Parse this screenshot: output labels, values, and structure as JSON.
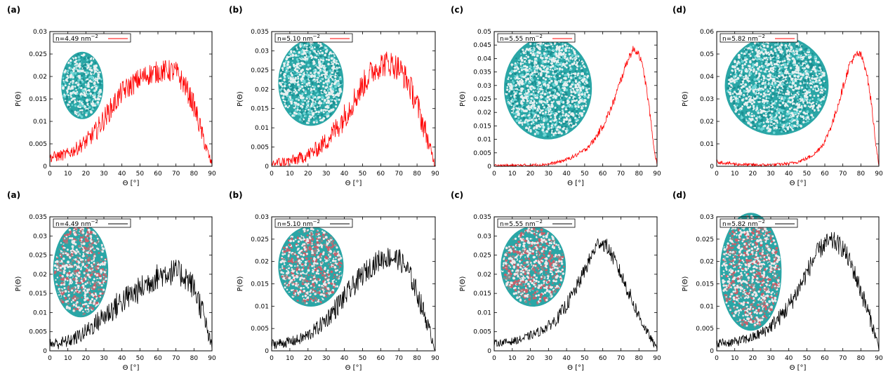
{
  "chart_data": [
    {
      "type": "line",
      "panel": "(a)",
      "legend": "n=4.49 nm",
      "legend_sup": "−2",
      "color": "#ff0000",
      "xlabel": "Θ [°]",
      "ylabel": "P(Θ)",
      "xlim": [
        0,
        90
      ],
      "ylim": [
        0,
        0.03
      ],
      "xticks": [
        0,
        10,
        20,
        30,
        40,
        50,
        60,
        70,
        80,
        90
      ],
      "yticks": [
        0,
        0.005,
        0.01,
        0.015,
        0.02,
        0.025,
        0.03
      ],
      "x": [
        0,
        5,
        10,
        15,
        20,
        25,
        30,
        35,
        40,
        45,
        50,
        55,
        60,
        65,
        70,
        75,
        80,
        85,
        88,
        90
      ],
      "y": [
        0.002,
        0.0023,
        0.0028,
        0.004,
        0.0055,
        0.0075,
        0.0105,
        0.0135,
        0.0165,
        0.018,
        0.0195,
        0.0205,
        0.021,
        0.0213,
        0.021,
        0.018,
        0.0135,
        0.0065,
        0.0025,
        0.0003
      ],
      "noise": 0.0025,
      "inset": {
        "cx": 0.2,
        "cy": 0.4,
        "r": 0.13,
        "rh": 0.25,
        "scheme": "cyan"
      }
    },
    {
      "type": "line",
      "panel": "(b)",
      "legend": "n=5.10 nm",
      "legend_sup": "−2",
      "color": "#ff0000",
      "xlabel": "Θ [°]",
      "ylabel": "P(Θ)",
      "xlim": [
        0,
        90
      ],
      "ylim": [
        0,
        0.035
      ],
      "xticks": [
        0,
        10,
        20,
        30,
        40,
        50,
        60,
        70,
        80,
        90
      ],
      "yticks": [
        0,
        0.005,
        0.01,
        0.015,
        0.02,
        0.025,
        0.03,
        0.035
      ],
      "x": [
        0,
        5,
        10,
        15,
        20,
        25,
        30,
        35,
        40,
        45,
        50,
        55,
        60,
        65,
        70,
        75,
        80,
        85,
        88,
        90
      ],
      "y": [
        0.0008,
        0.001,
        0.0013,
        0.002,
        0.003,
        0.0045,
        0.0065,
        0.0095,
        0.013,
        0.017,
        0.021,
        0.0245,
        0.0265,
        0.0268,
        0.0255,
        0.022,
        0.016,
        0.0085,
        0.003,
        0.0005
      ],
      "noise": 0.0035,
      "inset": {
        "cx": 0.24,
        "cy": 0.38,
        "r": 0.2,
        "rh": 0.32,
        "scheme": "cyan"
      }
    },
    {
      "type": "line",
      "panel": "(c)",
      "legend": "n=5.55 nm",
      "legend_sup": "−2",
      "color": "#ff0000",
      "xlabel": "Θ [°]",
      "ylabel": "P(Θ)",
      "xlim": [
        0,
        90
      ],
      "ylim": [
        0,
        0.05
      ],
      "xticks": [
        0,
        10,
        20,
        30,
        40,
        50,
        60,
        70,
        80,
        90
      ],
      "yticks": [
        0,
        0.005,
        0.01,
        0.015,
        0.02,
        0.025,
        0.03,
        0.035,
        0.04,
        0.045,
        0.05
      ],
      "x": [
        0,
        10,
        20,
        30,
        35,
        40,
        45,
        50,
        55,
        60,
        65,
        70,
        74,
        77,
        80,
        83,
        86,
        88,
        90
      ],
      "y": [
        0.0003,
        0.0003,
        0.0004,
        0.0008,
        0.0015,
        0.0025,
        0.004,
        0.006,
        0.0095,
        0.015,
        0.022,
        0.032,
        0.04,
        0.0435,
        0.042,
        0.034,
        0.02,
        0.008,
        0.0005
      ],
      "noise": 0.0015,
      "inset": {
        "cx": 0.33,
        "cy": 0.42,
        "r": 0.27,
        "rh": 0.38,
        "scheme": "cyan"
      }
    },
    {
      "type": "line",
      "panel": "(d)",
      "legend": "n=5.82 nm",
      "legend_sup": "−2",
      "color": "#ff0000",
      "xlabel": "Θ [°]",
      "ylabel": "P(Θ)",
      "xlim": [
        0,
        90
      ],
      "ylim": [
        0,
        0.06
      ],
      "xticks": [
        0,
        10,
        20,
        30,
        40,
        50,
        60,
        70,
        80,
        90
      ],
      "yticks": [
        0,
        0.01,
        0.02,
        0.03,
        0.04,
        0.05,
        0.06
      ],
      "x": [
        0,
        5,
        10,
        20,
        30,
        40,
        45,
        50,
        55,
        60,
        65,
        70,
        74,
        78,
        80,
        83,
        86,
        88,
        90
      ],
      "y": [
        0.002,
        0.0015,
        0.001,
        0.0006,
        0.0006,
        0.0012,
        0.002,
        0.0035,
        0.006,
        0.011,
        0.021,
        0.035,
        0.046,
        0.05,
        0.0495,
        0.043,
        0.027,
        0.012,
        0.0005
      ],
      "noise": 0.0018,
      "inset": {
        "cx": 0.37,
        "cy": 0.4,
        "r": 0.32,
        "rh": 0.37,
        "scheme": "cyan"
      }
    },
    {
      "type": "line",
      "panel": "(a)",
      "legend": "n=4.49 nm",
      "legend_sup": "−2",
      "color": "#000000",
      "xlabel": "Θ [°]",
      "ylabel": "P(Θ)",
      "xlim": [
        0,
        90
      ],
      "ylim": [
        0,
        0.035
      ],
      "xticks": [
        0,
        10,
        20,
        30,
        40,
        50,
        60,
        70,
        80,
        90
      ],
      "yticks": [
        0,
        0.005,
        0.01,
        0.015,
        0.02,
        0.025,
        0.03,
        0.035
      ],
      "x": [
        0,
        5,
        10,
        15,
        20,
        25,
        30,
        35,
        40,
        45,
        50,
        55,
        60,
        65,
        70,
        75,
        80,
        85,
        88,
        90
      ],
      "y": [
        0.0018,
        0.002,
        0.0025,
        0.0035,
        0.005,
        0.007,
        0.009,
        0.011,
        0.013,
        0.0145,
        0.016,
        0.018,
        0.0195,
        0.0205,
        0.0205,
        0.0195,
        0.0165,
        0.01,
        0.004,
        0.0008
      ],
      "noise": 0.0035,
      "inset": {
        "cx": 0.19,
        "cy": 0.4,
        "r": 0.17,
        "rh": 0.35,
        "scheme": "pink"
      }
    },
    {
      "type": "line",
      "panel": "(b)",
      "legend": "n=5.10 nm",
      "legend_sup": "−2",
      "color": "#000000",
      "xlabel": "Θ [°]",
      "ylabel": "P(Θ)",
      "xlim": [
        0,
        90
      ],
      "ylim": [
        0,
        0.03
      ],
      "xticks": [
        0,
        10,
        20,
        30,
        40,
        50,
        60,
        70,
        80,
        90
      ],
      "yticks": [
        0,
        0.005,
        0.01,
        0.015,
        0.02,
        0.025,
        0.03
      ],
      "x": [
        0,
        5,
        10,
        15,
        20,
        25,
        30,
        35,
        40,
        45,
        50,
        55,
        60,
        65,
        70,
        75,
        80,
        85,
        88,
        90
      ],
      "y": [
        0.0015,
        0.0017,
        0.002,
        0.0025,
        0.0035,
        0.005,
        0.007,
        0.0095,
        0.012,
        0.0145,
        0.017,
        0.019,
        0.0205,
        0.021,
        0.0205,
        0.018,
        0.013,
        0.007,
        0.003,
        0.0005
      ],
      "noise": 0.0025,
      "inset": {
        "cx": 0.24,
        "cy": 0.37,
        "r": 0.2,
        "rh": 0.3,
        "scheme": "pink"
      }
    },
    {
      "type": "line",
      "panel": "(c)",
      "legend": "n=5.55 nm",
      "legend_sup": "−2",
      "color": "#000000",
      "xlabel": "Θ [°]",
      "ylabel": "P(Θ)",
      "xlim": [
        0,
        90
      ],
      "ylim": [
        0,
        0.035
      ],
      "xticks": [
        0,
        10,
        20,
        30,
        40,
        50,
        60,
        70,
        80,
        90
      ],
      "yticks": [
        0,
        0.005,
        0.01,
        0.015,
        0.02,
        0.025,
        0.03,
        0.035
      ],
      "x": [
        0,
        5,
        10,
        15,
        20,
        25,
        30,
        35,
        40,
        45,
        50,
        55,
        58,
        62,
        65,
        70,
        75,
        80,
        85,
        88,
        90
      ],
      "y": [
        0.002,
        0.0022,
        0.0025,
        0.003,
        0.004,
        0.005,
        0.0065,
        0.0085,
        0.012,
        0.016,
        0.021,
        0.026,
        0.0285,
        0.0275,
        0.025,
        0.02,
        0.0145,
        0.009,
        0.0045,
        0.002,
        0.0005
      ],
      "noise": 0.002,
      "inset": {
        "cx": 0.24,
        "cy": 0.37,
        "r": 0.2,
        "rh": 0.3,
        "scheme": "pink"
      }
    },
    {
      "type": "line",
      "panel": "(d)",
      "legend": "n=5.82 nm",
      "legend_sup": "−2",
      "color": "#000000",
      "xlabel": "Θ [°]",
      "ylabel": "P(Θ)",
      "xlim": [
        0,
        90
      ],
      "ylim": [
        0,
        0.03
      ],
      "xticks": [
        0,
        10,
        20,
        30,
        40,
        50,
        60,
        70,
        80,
        90
      ],
      "yticks": [
        0,
        0.005,
        0.01,
        0.015,
        0.02,
        0.025,
        0.03
      ],
      "x": [
        0,
        5,
        10,
        15,
        20,
        25,
        30,
        35,
        40,
        45,
        50,
        55,
        60,
        65,
        70,
        75,
        80,
        85,
        88,
        90
      ],
      "y": [
        0.0018,
        0.0018,
        0.002,
        0.0025,
        0.003,
        0.004,
        0.0055,
        0.0075,
        0.01,
        0.0135,
        0.0175,
        0.0215,
        0.024,
        0.0245,
        0.023,
        0.019,
        0.0135,
        0.0075,
        0.0035,
        0.0006
      ],
      "noise": 0.0022,
      "inset": {
        "cx": 0.21,
        "cy": 0.41,
        "r": 0.19,
        "rh": 0.44,
        "scheme": "pink"
      }
    }
  ]
}
